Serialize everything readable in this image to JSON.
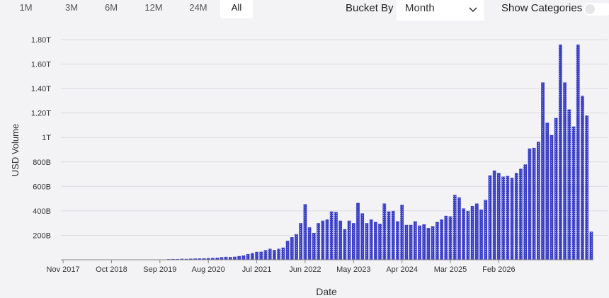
{
  "controls": {
    "ranges": [
      "1M",
      "3M",
      "6M",
      "12M",
      "24M",
      "All"
    ],
    "active_range": "All",
    "bucket_label": "Bucket By",
    "bucket_value": "Month",
    "show_categories_label": "Show Categories",
    "show_categories_on": false
  },
  "colors": {
    "bar": "#3b3fc4",
    "grid": "#dcdce0",
    "background": "#f3f3f5",
    "axis_text": "#333333"
  },
  "chart_data": {
    "type": "bar",
    "xlabel": "Date",
    "ylabel": "USD Volume",
    "ylim": [
      0,
      1800000000000
    ],
    "y_ticks": [
      200000000000,
      400000000000,
      600000000000,
      800000000000,
      1000000000000,
      1200000000000,
      1400000000000,
      1600000000000,
      1800000000000
    ],
    "y_tick_labels": [
      "200B",
      "400B",
      "600B",
      "800B",
      "1T",
      "1.20T",
      "1.40T",
      "1.60T",
      "1.80T"
    ],
    "x_tick_labels": [
      "Nov 2017",
      "Oct 2018",
      "Sep 2019",
      "Aug 2020",
      "Jul 2021",
      "Jun 2022",
      "May 2023",
      "Apr 2024",
      "Mar 2025",
      "Feb 2026"
    ],
    "x_tick_months": [
      "2017-11",
      "2018-10",
      "2019-09",
      "2020-08",
      "2021-07",
      "2022-06",
      "2023-05",
      "2024-04",
      "2025-03",
      "2026-02"
    ],
    "start_month": "2017-11",
    "grid": true,
    "legend": "none",
    "values": [
      0.1,
      0.1,
      0.2,
      0.3,
      0.3,
      0.4,
      0.5,
      0.5,
      0.6,
      0.7,
      0.8,
      0.9,
      1,
      1,
      1.2,
      1.3,
      1.5,
      1.6,
      1.8,
      2,
      2,
      2,
      3,
      3,
      5,
      6,
      6,
      8,
      7,
      9,
      10,
      11,
      12,
      14,
      16,
      17,
      21,
      24,
      23,
      25,
      30,
      36,
      46,
      55,
      65,
      66,
      79,
      90,
      80,
      90,
      100,
      155,
      185,
      210,
      300,
      455,
      265,
      220,
      300,
      320,
      330,
      395,
      390,
      320,
      250,
      320,
      300,
      465,
      380,
      300,
      330,
      310,
      295,
      460,
      395,
      400,
      315,
      450,
      285,
      285,
      315,
      280,
      290,
      260,
      275,
      310,
      330,
      360,
      355,
      530,
      510,
      420,
      400,
      440,
      460,
      410,
      490,
      690,
      730,
      710,
      680,
      685,
      670,
      710,
      745,
      780,
      910,
      915,
      965,
      1450,
      1120,
      1020,
      1160,
      1760,
      1450,
      1230,
      1090,
      1760,
      1340,
      1180,
      230
    ]
  }
}
